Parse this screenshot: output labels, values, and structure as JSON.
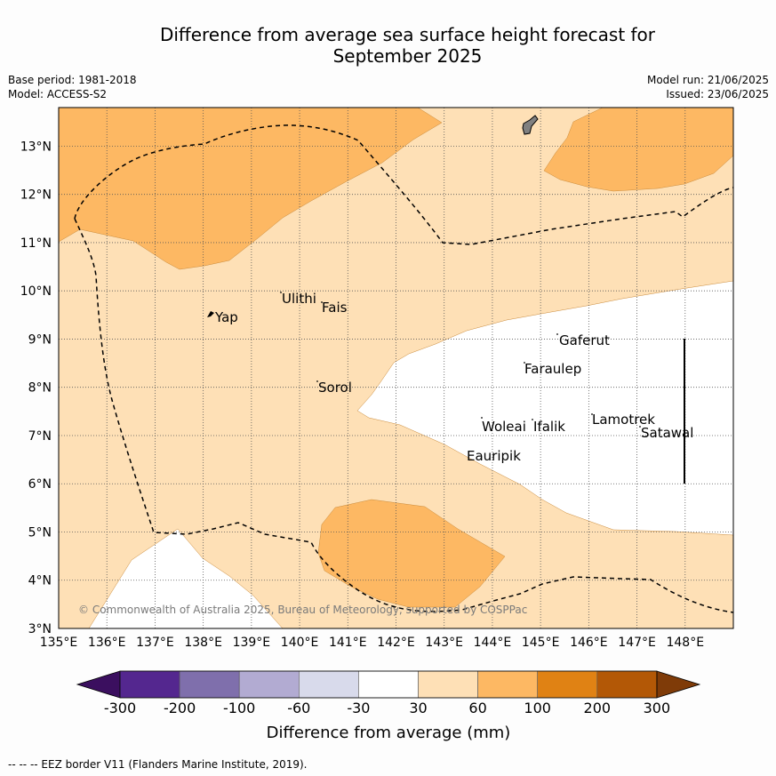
{
  "title_line1": "Difference from average sea surface height forecast for",
  "title_line2": "September 2025",
  "meta_left": {
    "base_period": "Base period: 1981-2018",
    "model": "Model: ACCESS-S2"
  },
  "meta_right": {
    "model_run": "Model run: 21/06/2025",
    "issued": "Issued: 23/06/2025"
  },
  "map": {
    "lon_range": [
      135,
      149
    ],
    "lat_range": [
      3,
      13.8
    ],
    "x_ticks": [
      "135°E",
      "136°E",
      "137°E",
      "138°E",
      "139°E",
      "140°E",
      "141°E",
      "142°E",
      "143°E",
      "144°E",
      "145°E",
      "146°E",
      "147°E",
      "148°E"
    ],
    "y_ticks": [
      "3°N",
      "4°N",
      "5°N",
      "6°N",
      "7°N",
      "8°N",
      "9°N",
      "10°N",
      "11°N",
      "12°N",
      "13°N"
    ],
    "copyright": "© Commonwealth of Australia 2025, Bureau of Meteorology, supported by COSPPac",
    "places": [
      {
        "name": "Yap"
      },
      {
        "name": "Ulithi"
      },
      {
        "name": "Fais"
      },
      {
        "name": "Sorol"
      },
      {
        "name": "Gaferut"
      },
      {
        "name": "Faraulep"
      },
      {
        "name": "Woleai"
      },
      {
        "name": "Ifalik"
      },
      {
        "name": "Lamotrek"
      },
      {
        "name": "Satawal"
      },
      {
        "name": "Eauripik"
      }
    ]
  },
  "colorbar": {
    "labels": [
      "-300",
      "-200",
      "-100",
      "-60",
      "-30",
      "30",
      "60",
      "100",
      "200",
      "300"
    ],
    "colors": [
      "#3b0f5f",
      "#54278f",
      "#7f6fac",
      "#b2abd2",
      "#d8daeb",
      "#ffffff",
      "#fee0b6",
      "#fdb863",
      "#e08214",
      "#b35806",
      "#7f3b08"
    ],
    "title": "Difference from average (mm)"
  },
  "footer": "--  --  -- EEZ border V11 (Flanders Marine Institute, 2019)."
}
